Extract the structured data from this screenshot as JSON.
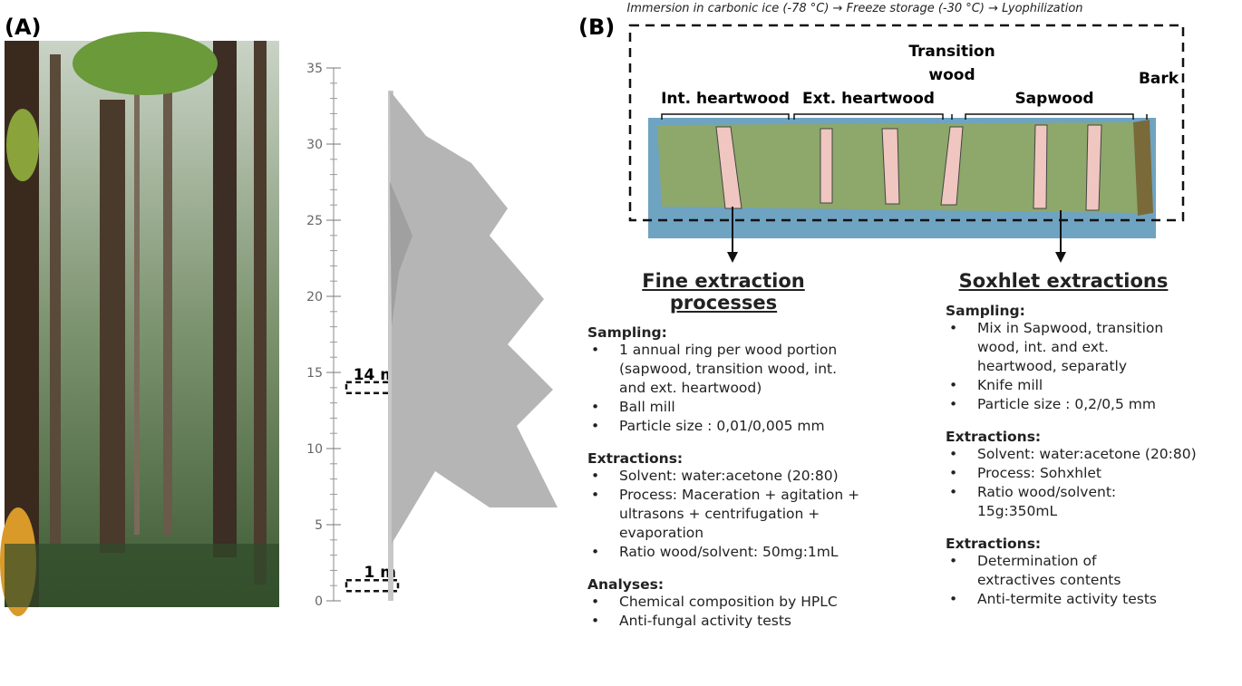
{
  "panel_a": {
    "label": "(A)",
    "scale": {
      "ticks": [
        0,
        5,
        10,
        15,
        20,
        25,
        30,
        35
      ],
      "markers": [
        {
          "value": 14,
          "label": "14 m"
        },
        {
          "value": 1,
          "label": "1 m"
        }
      ]
    }
  },
  "panel_b": {
    "label": "(B)",
    "caption": "Immersion in carbonic ice (-78 °C) → Freeze storage (-30 °C) → Lyophilization",
    "wood_labels": {
      "int_heartwood": "Int. heartwood",
      "ext_heartwood": "Ext. heartwood",
      "transition": [
        "Transition",
        "wood"
      ],
      "sapwood": "Sapwood",
      "bark": "Bark"
    },
    "columns": [
      {
        "title": "Fine extraction processes",
        "sections": [
          {
            "heading": "Sampling:",
            "items": [
              [
                "1 annual ring per wood portion",
                "(sapwood, transition wood,  int.",
                "and ext. heartwood)"
              ],
              [
                "Ball mill"
              ],
              [
                "Particle size : 0,01/0,005 mm"
              ]
            ]
          },
          {
            "heading": "Extractions:",
            "items": [
              [
                "Solvent: water:acetone (20:80)"
              ],
              [
                "Process: Maceration + agitation +",
                "ultrasons + centrifugation +",
                "evaporation"
              ],
              [
                "Ratio wood/solvent: 50mg:1mL"
              ]
            ]
          },
          {
            "heading": "Analyses:",
            "items": [
              [
                "Chemical composition by HPLC"
              ],
              [
                "Anti-fungal activity tests"
              ]
            ]
          }
        ]
      },
      {
        "title": "Soxhlet extractions",
        "sections": [
          {
            "heading": "Sampling:",
            "items": [
              [
                "Mix in Sapwood, transition",
                "wood,  int. and ext.",
                "heartwood, separatly"
              ],
              [
                "Knife mill"
              ],
              [
                "Particle size  : 0,2/0,5 mm"
              ]
            ]
          },
          {
            "heading": "Extractions:",
            "items": [
              [
                "Solvent: water:acetone (20:80)"
              ],
              [
                "Process: Sohxhlet"
              ],
              [
                "Ratio wood/solvent:",
                "15g:350mL"
              ]
            ]
          },
          {
            "heading": "Extractions:",
            "items": [
              [
                "Determination of",
                "extractives contents"
              ],
              [
                "Anti-termite activity tests"
              ]
            ]
          }
        ]
      }
    ]
  }
}
